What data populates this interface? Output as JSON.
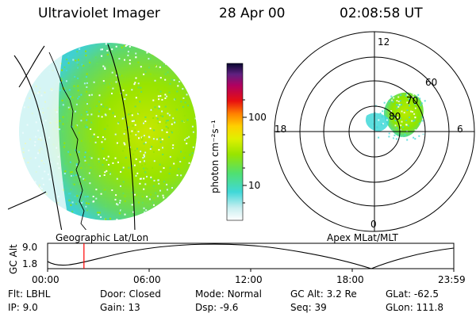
{
  "header": {
    "instrument": "Ultraviolet Imager",
    "date": "28 Apr 00",
    "time": "02:08:58 UT"
  },
  "colorbar": {
    "unit_label": "photon cm⁻²s⁻¹",
    "ticks": [
      "100",
      "10"
    ]
  },
  "polar_plot": {
    "mlt_labels": [
      "12",
      "18",
      "6",
      "0"
    ],
    "mlat_labels": [
      "60",
      "70",
      "80"
    ]
  },
  "captions": {
    "left_panel": "Geographic Lat/Lon",
    "right_panel": "Apex MLat/MLT"
  },
  "altitude_plot": {
    "axis_label": "GC Alt",
    "y_ticks": [
      "9.0",
      "1.8"
    ],
    "x_ticks": [
      "00:00",
      "06:00",
      "12:00",
      "18:00",
      "23:59"
    ],
    "current_time_fraction": 0.0895
  },
  "info": {
    "row1": [
      {
        "label": "Flt:",
        "value": "LBHL"
      },
      {
        "label": "Door:",
        "value": "Closed"
      },
      {
        "label": "Mode:",
        "value": "Normal"
      },
      {
        "label": "GC Alt:",
        "value": "3.2 Re"
      },
      {
        "label": "GLat:",
        "value": "-62.5"
      }
    ],
    "row2": [
      {
        "label": "IP:",
        "value": "9.0"
      },
      {
        "label": "Gain:",
        "value": "13"
      },
      {
        "label": "Dsp:",
        "value": "-9.6"
      },
      {
        "label": "Seq:",
        "value": "39"
      },
      {
        "label": "GLon:",
        "value": "111.8"
      }
    ]
  },
  "colors": {
    "auroral_green": "#8ee600",
    "auroral_cyan": "#40d8d8",
    "time_marker": "#ff0000"
  }
}
